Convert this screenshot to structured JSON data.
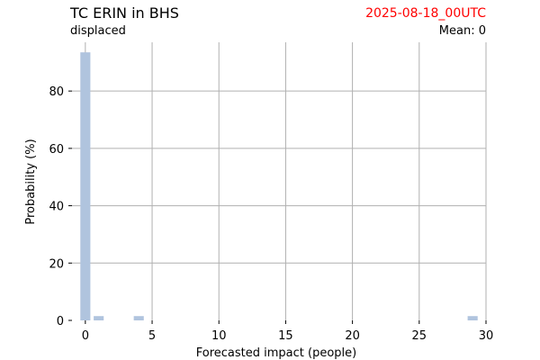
{
  "header": {
    "title": "TC ERIN in BHS",
    "date": "2025-08-18_00UTC",
    "subtitle": "displaced",
    "mean": "Mean: 0"
  },
  "colors": {
    "bar": "#b0c4de",
    "date": "#ff0000",
    "grid": "#b0b0b0"
  },
  "chart_data": {
    "type": "bar",
    "title": "TC ERIN in BHS",
    "xlabel": "Forecasted impact (people)",
    "ylabel": "Probability (%)",
    "xlim": [
      -1,
      30
    ],
    "ylim": [
      0,
      97
    ],
    "xticks": [
      0,
      5,
      10,
      15,
      20,
      25,
      30
    ],
    "yticks": [
      0,
      20,
      40,
      60,
      80
    ],
    "grid": true,
    "bars": [
      {
        "x": 0,
        "value": 93.5
      },
      {
        "x": 1,
        "value": 1.5
      },
      {
        "x": 4,
        "value": 1.5
      },
      {
        "x": 29,
        "value": 1.5
      }
    ]
  }
}
